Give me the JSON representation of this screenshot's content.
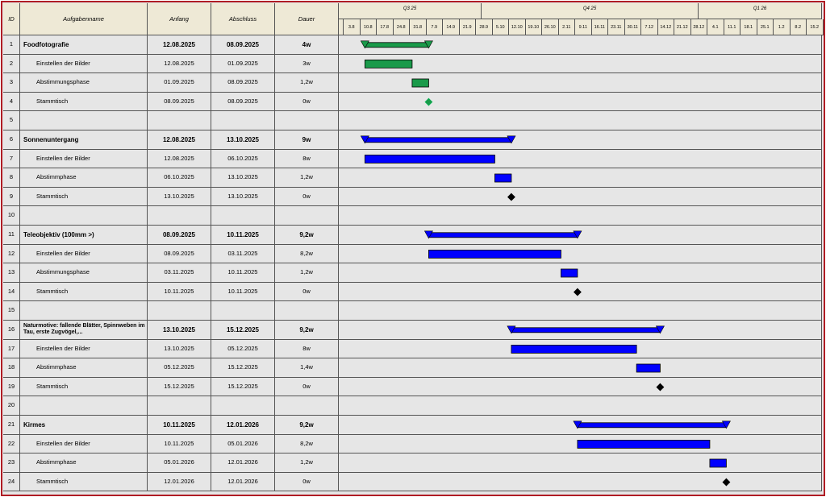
{
  "header": {
    "id": "ID",
    "name": "Aufgabenname",
    "start": "Anfang",
    "end": "Abschluss",
    "duration": "Dauer"
  },
  "timeline": {
    "quarters": [
      "Q3 25",
      "Q4 25",
      "Q1 26"
    ],
    "weeks": [
      "3.8",
      "10.8",
      "17.8",
      "24.8",
      "31.8",
      "7.9",
      "14.9",
      "21.9",
      "28.9",
      "5.10",
      "12.10",
      "19.10",
      "26.10",
      "2.11",
      "9.11",
      "16.11",
      "23.11",
      "30.11",
      "7.12",
      "14.12",
      "21.12",
      "28.12",
      "4.1",
      "11.1",
      "18.1",
      "25.1",
      "1.2",
      "8.2",
      "15.2"
    ]
  },
  "rows": [
    {
      "id": "1",
      "name": "Foodfotografie",
      "start": "12.08.2025",
      "end": "08.09.2025",
      "duration": "4w",
      "kind": "summary",
      "color": "#1a9a4a"
    },
    {
      "id": "2",
      "name": "Einstellen der Bilder",
      "start": "12.08.2025",
      "end": "01.09.2025",
      "duration": "3w",
      "kind": "task",
      "color": "#1a9a4a"
    },
    {
      "id": "3",
      "name": "Abstimmungsphase",
      "start": "01.09.2025",
      "end": "08.09.2025",
      "duration": "1,2w",
      "kind": "task",
      "color": "#1a9a4a"
    },
    {
      "id": "4",
      "name": "Stammtisch",
      "start": "08.09.2025",
      "end": "08.09.2025",
      "duration": "0w",
      "kind": "milestone",
      "color": "#1a9a4a"
    },
    {
      "id": "5"
    },
    {
      "id": "6",
      "name": "Sonnenuntergang",
      "start": "12.08.2025",
      "end": "13.10.2025",
      "duration": "9w",
      "kind": "summary",
      "color": "#0000ff"
    },
    {
      "id": "7",
      "name": "Einstellen der Bilder",
      "start": "12.08.2025",
      "end": "06.10.2025",
      "duration": "8w",
      "kind": "task",
      "color": "#0000ff"
    },
    {
      "id": "8",
      "name": "Abstimmphase",
      "start": "06.10.2025",
      "end": "13.10.2025",
      "duration": "1,2w",
      "kind": "task",
      "color": "#0000ff"
    },
    {
      "id": "9",
      "name": "Stammtisch",
      "start": "13.10.2025",
      "end": "13.10.2025",
      "duration": "0w",
      "kind": "milestone",
      "color": "#000000"
    },
    {
      "id": "10"
    },
    {
      "id": "11",
      "name": "Teleobjektiv (100mm >)",
      "start": "08.09.2025",
      "end": "10.11.2025",
      "duration": "9,2w",
      "kind": "summary",
      "color": "#0000ff"
    },
    {
      "id": "12",
      "name": "Einstellen der Bilder",
      "start": "08.09.2025",
      "end": "03.11.2025",
      "duration": "8,2w",
      "kind": "task",
      "color": "#0000ff"
    },
    {
      "id": "13",
      "name": "Abstimmungsphase",
      "start": "03.11.2025",
      "end": "10.11.2025",
      "duration": "1,2w",
      "kind": "task",
      "color": "#0000ff"
    },
    {
      "id": "14",
      "name": "Stammtisch",
      "start": "10.11.2025",
      "end": "10.11.2025",
      "duration": "0w",
      "kind": "milestone",
      "color": "#000000"
    },
    {
      "id": "15"
    },
    {
      "id": "16",
      "name": "Naturmotive: fallende Blätter, Spinnweben im Tau, erste Zugvögel,...",
      "start": "13.10.2025",
      "end": "15.12.2025",
      "duration": "9,2w",
      "kind": "summary",
      "color": "#0000ff"
    },
    {
      "id": "17",
      "name": "Einstellen der Bilder",
      "start": "13.10.2025",
      "end": "05.12.2025",
      "duration": "8w",
      "kind": "task",
      "color": "#0000ff"
    },
    {
      "id": "18",
      "name": "Abstimmphase",
      "start": "05.12.2025",
      "end": "15.12.2025",
      "duration": "1,4w",
      "kind": "task",
      "color": "#0000ff"
    },
    {
      "id": "19",
      "name": "Stammtisch",
      "start": "15.12.2025",
      "end": "15.12.2025",
      "duration": "0w",
      "kind": "milestone",
      "color": "#000000"
    },
    {
      "id": "20"
    },
    {
      "id": "21",
      "name": "Kirmes",
      "start": "10.11.2025",
      "end": "12.01.2026",
      "duration": "9,2w",
      "kind": "summary",
      "color": "#0000ff"
    },
    {
      "id": "22",
      "name": "Einstellen der Bilder",
      "start": "10.11.2025",
      "end": "05.01.2026",
      "duration": "8,2w",
      "kind": "task",
      "color": "#0000ff"
    },
    {
      "id": "23",
      "name": "Abstimmphase",
      "start": "05.01.2026",
      "end": "12.01.2026",
      "duration": "1,2w",
      "kind": "task",
      "color": "#0000ff"
    },
    {
      "id": "24",
      "name": "Stammtisch",
      "start": "12.01.2026",
      "end": "12.01.2026",
      "duration": "0w",
      "kind": "milestone",
      "color": "#000000"
    }
  ]
}
